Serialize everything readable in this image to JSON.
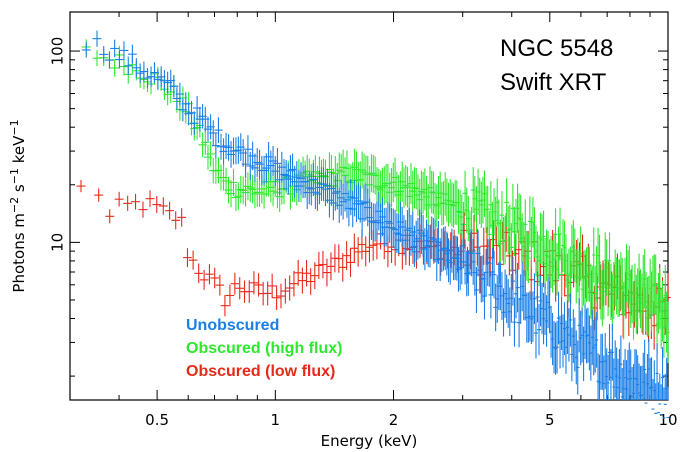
{
  "chart_data": {
    "type": "scatter",
    "title": "",
    "xlabel": "Energy (keV)",
    "ylabel_parts": [
      "Photons m",
      "−2",
      " s",
      "−1",
      " keV",
      "−1"
    ],
    "xscale": "log",
    "yscale": "log",
    "xlim": [
      0.3,
      10
    ],
    "ylim": [
      1.5,
      160
    ],
    "x_ticks": [
      0.5,
      1,
      2,
      5,
      10
    ],
    "x_tick_labels": [
      "0.5",
      "1",
      "2",
      "5",
      "10"
    ],
    "y_ticks": [
      10,
      100
    ],
    "y_tick_labels": [
      "10",
      "100"
    ],
    "annotation": [
      "NGC 5548",
      "Swift XRT"
    ],
    "legend_placement": "bottom-left",
    "series": [
      {
        "name": "Unobscured",
        "color": "#1a7fe6",
        "x": [
          0.33,
          0.35,
          0.38,
          0.42,
          0.46,
          0.5,
          0.55,
          0.6,
          0.65,
          0.7,
          0.8,
          0.9,
          1.0,
          1.1,
          1.3,
          1.5,
          1.7,
          2.0,
          2.3,
          2.6,
          3.0,
          3.5,
          4.0,
          4.5,
          5.0,
          6.0,
          7.0,
          8.0,
          9.0,
          10.0
        ],
        "y": [
          110,
          108,
          100,
          90,
          80,
          72,
          62,
          50,
          43,
          36,
          30,
          27,
          24,
          22,
          19,
          16.5,
          14.5,
          12,
          10.5,
          9,
          7.5,
          6.2,
          5,
          4.3,
          3.7,
          2.8,
          2.3,
          1.9,
          1.7,
          1.55
        ]
      },
      {
        "name": "Obscured (high flux)",
        "color": "#2ee82e",
        "x": [
          0.33,
          0.35,
          0.38,
          0.42,
          0.46,
          0.5,
          0.55,
          0.6,
          0.65,
          0.7,
          0.75,
          0.8,
          0.9,
          1.0,
          1.2,
          1.4,
          1.6,
          1.8,
          2.0,
          2.3,
          2.6,
          3.0,
          3.5,
          4.0,
          4.5,
          5.0,
          6.0,
          7.0,
          8.0,
          9.0,
          10.0
        ],
        "y": [
          98,
          96,
          90,
          85,
          78,
          70,
          60,
          48,
          35,
          24,
          20,
          19,
          18.5,
          19,
          21,
          22,
          22.5,
          21,
          20,
          18.5,
          16.5,
          15,
          13.5,
          12,
          10.5,
          9.5,
          7.5,
          6.3,
          5.5,
          4.8,
          4.3
        ]
      },
      {
        "name": "Obscured (low flux)",
        "color": "#e62a1a",
        "x": [
          0.32,
          0.34,
          0.36,
          0.38,
          0.4,
          0.43,
          0.46,
          0.5,
          0.53,
          0.56,
          0.58,
          0.6,
          0.65,
          0.7,
          0.75,
          0.8,
          0.9,
          1.0,
          1.1,
          1.2,
          1.3,
          1.4,
          1.5,
          1.6,
          1.7,
          1.8,
          2.0,
          2.3,
          2.6,
          3.0,
          3.5,
          4.0,
          4.5,
          5.0,
          6.0,
          7.0,
          8.0,
          9.0,
          10.0
        ],
        "y": [
          19,
          20,
          18,
          13,
          15,
          15.5,
          16,
          15,
          14,
          13.5,
          12.5,
          8.5,
          7,
          6,
          5,
          6,
          5.5,
          5.5,
          6,
          6.5,
          7,
          7.5,
          8.2,
          9,
          9.5,
          10,
          10,
          9.5,
          9.2,
          9,
          8.8,
          8.5,
          8,
          7.5,
          6.5,
          5.5,
          5,
          4.6,
          4.3
        ]
      }
    ]
  }
}
